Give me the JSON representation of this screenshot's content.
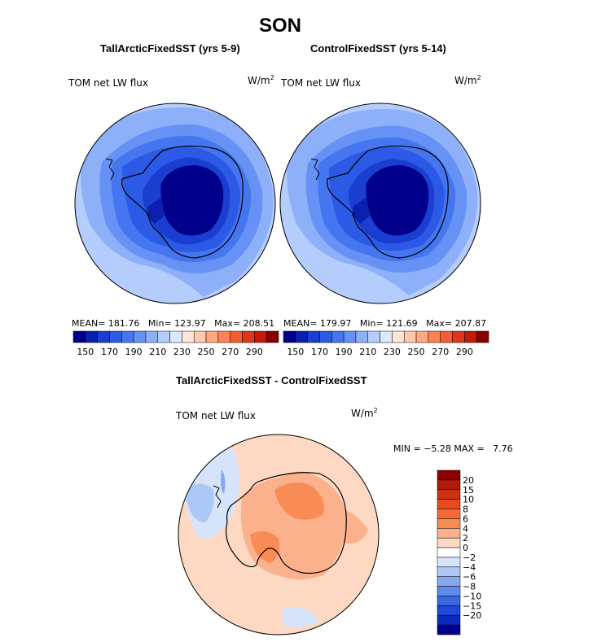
{
  "figure": {
    "season": "SON"
  },
  "panels": [
    {
      "title": "TallArcticFixedSST (yrs 5-9)",
      "variable": "TOM net LW flux",
      "units": "W/m",
      "units_exp": "2",
      "stats": {
        "mean_label": "MEAN=",
        "mean": "181.76",
        "min_label": "Min=",
        "min": "123.97",
        "max_label": "Max=",
        "max": "208.51"
      }
    },
    {
      "title": "ControlFixedSST (yrs 5-14)",
      "variable": "TOM net LW flux",
      "units": "W/m",
      "units_exp": "2",
      "stats": {
        "mean_label": "MEAN=",
        "mean": "179.97",
        "min_label": "Min=",
        "min": "121.69",
        "max_label": "Max=",
        "max": "207.87"
      }
    }
  ],
  "diff_panel": {
    "title": "TallArcticFixedSST - ControlFixedSST",
    "variable": "TOM net LW flux",
    "units": "W/m",
    "units_exp": "2",
    "min_label": "MIN =",
    "min": "−5.28",
    "max_label": "MAX =",
    "max": "7.76"
  },
  "chart_data": [
    {
      "type": "heatmap",
      "title": "TallArcticFixedSST (yrs 5-9)",
      "projection": "south polar stereographic",
      "colorbar": {
        "orientation": "horizontal",
        "levels": [
          140,
          150,
          160,
          170,
          180,
          190,
          200,
          210,
          220,
          230,
          240,
          250,
          260,
          270,
          280,
          290
        ],
        "tick_labels": [
          "150",
          "170",
          "190",
          "210",
          "230",
          "250",
          "270",
          "290"
        ],
        "colors": [
          "#00008b",
          "#0a1fae",
          "#1a3fd0",
          "#2c5ae6",
          "#4676ef",
          "#6692f5",
          "#8db0f9",
          "#b4cdfc",
          "#dbe8ff",
          "#ffe5d6",
          "#ffc9ae",
          "#ffa882",
          "#ff8257",
          "#f75c2f",
          "#e0361a",
          "#c41a0a",
          "#8b0000"
        ]
      },
      "mean": 181.76,
      "min": 123.97,
      "max": 208.51
    },
    {
      "type": "heatmap",
      "title": "ControlFixedSST (yrs 5-14)",
      "projection": "south polar stereographic",
      "colorbar": {
        "orientation": "horizontal",
        "levels": [
          140,
          150,
          160,
          170,
          180,
          190,
          200,
          210,
          220,
          230,
          240,
          250,
          260,
          270,
          280,
          290
        ],
        "tick_labels": [
          "150",
          "170",
          "190",
          "210",
          "230",
          "250",
          "270",
          "290"
        ],
        "colors": [
          "#00008b",
          "#0a1fae",
          "#1a3fd0",
          "#2c5ae6",
          "#4676ef",
          "#6692f5",
          "#8db0f9",
          "#b4cdfc",
          "#dbe8ff",
          "#ffe5d6",
          "#ffc9ae",
          "#ffa882",
          "#ff8257",
          "#f75c2f",
          "#e0361a",
          "#c41a0a",
          "#8b0000"
        ]
      },
      "mean": 179.97,
      "min": 121.69,
      "max": 207.87
    },
    {
      "type": "heatmap",
      "title": "TallArcticFixedSST - ControlFixedSST",
      "projection": "south polar stereographic",
      "colorbar": {
        "orientation": "vertical",
        "levels": [
          -20,
          -15,
          -10,
          -8,
          -6,
          -4,
          -2,
          0,
          2,
          4,
          6,
          8,
          10,
          15,
          20
        ],
        "tick_labels": [
          "20",
          "15",
          "10",
          "8",
          "6",
          "4",
          "2",
          "0",
          "−2",
          "−4",
          "−6",
          "−8",
          "−10",
          "−15",
          "−20"
        ],
        "colors_top_to_bottom": [
          "#8b0000",
          "#b01a08",
          "#cf3010",
          "#e84a1c",
          "#f56a35",
          "#f98b55",
          "#fbb18b",
          "#fdd8c2",
          "#ffffff",
          "#d6e4fb",
          "#aec8f6",
          "#86aaf0",
          "#5e8bea",
          "#3a68e0",
          "#1f48d4",
          "#0b2bbf",
          "#00008b"
        ]
      },
      "min": -5.28,
      "max": 7.76
    }
  ]
}
